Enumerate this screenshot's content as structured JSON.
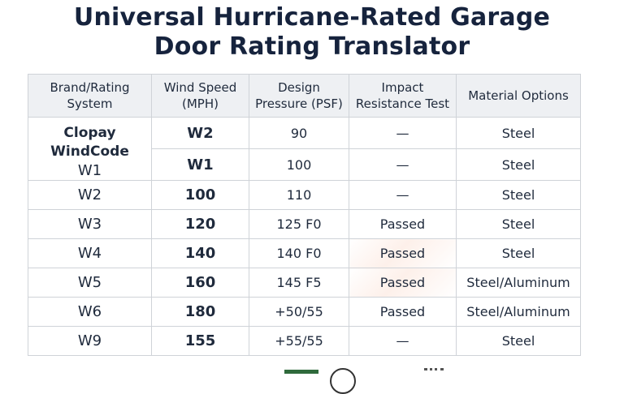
{
  "title": {
    "line1": "Universal Hurricane-Rated Garage",
    "line2": "Door Rating Translator"
  },
  "table": {
    "headers": {
      "col1": "Brand/Rating System",
      "col2": "Wind Speed (MPH)",
      "col3": "Design Pressure (PSF)",
      "col4": "Impact Resistance Test",
      "col5": "Material Options"
    },
    "brand_label": {
      "line1": "Clopay",
      "line2": "WindCode",
      "line3": "W1"
    },
    "rows": [
      {
        "wind": "W2",
        "pressure": "90",
        "impact": "—",
        "material": "Steel"
      },
      {
        "wind": "W1",
        "pressure": "100",
        "impact": "—",
        "material": "Steel"
      },
      {
        "brand": "W2",
        "wind": "100",
        "pressure": "110",
        "impact": "—",
        "material": "Steel"
      },
      {
        "brand": "W3",
        "wind": "120",
        "pressure": "125 F0",
        "impact": "Passed",
        "material": "Steel"
      },
      {
        "brand": "W4",
        "wind": "140",
        "pressure": "140 F0",
        "impact": "Passed",
        "material": "Steel"
      },
      {
        "brand": "W5",
        "wind": "160",
        "pressure": "145 F5",
        "impact": "Passed",
        "material": "Steel/Aluminum"
      },
      {
        "brand": "W6",
        "wind": "180",
        "pressure": "+50/55",
        "impact": "Passed",
        "material": "Steel/Aluminum"
      },
      {
        "brand": "W9",
        "wind": "155",
        "pressure": "+55/55",
        "impact": "—",
        "material": "Steel"
      }
    ]
  }
}
